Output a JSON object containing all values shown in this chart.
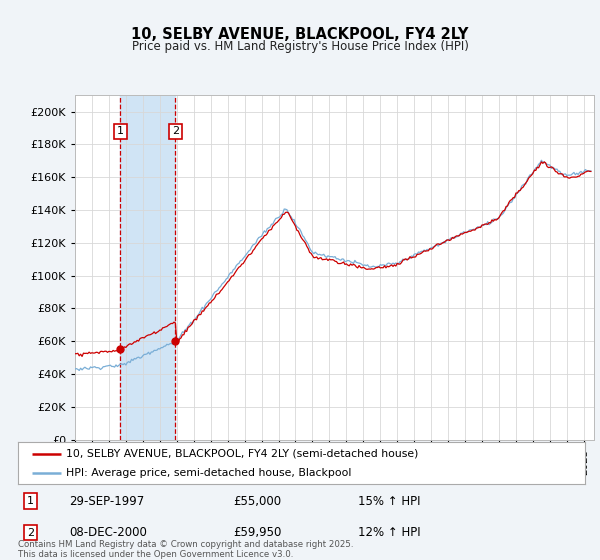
{
  "title": "10, SELBY AVENUE, BLACKPOOL, FY4 2LY",
  "subtitle": "Price paid vs. HM Land Registry's House Price Index (HPI)",
  "red_label": "10, SELBY AVENUE, BLACKPOOL, FY4 2LY (semi-detached house)",
  "blue_label": "HPI: Average price, semi-detached house, Blackpool",
  "footnote": "Contains HM Land Registry data © Crown copyright and database right 2025.\nThis data is licensed under the Open Government Licence v3.0.",
  "purchase1_date": "29-SEP-1997",
  "purchase1_price": 55000,
  "purchase1_hpi": "15% ↑ HPI",
  "purchase2_date": "08-DEC-2000",
  "purchase2_price": 59950,
  "purchase2_hpi": "12% ↑ HPI",
  "ylim_max": 210000,
  "background_color": "#f0f4f8",
  "plot_bg_color": "#ffffff",
  "red_color": "#cc0000",
  "blue_color": "#7aaed6",
  "vline_color": "#cc0000",
  "shade_color": "#d0e4f5",
  "box1_edge": "#cc0000",
  "box2_edge": "#cc0000"
}
